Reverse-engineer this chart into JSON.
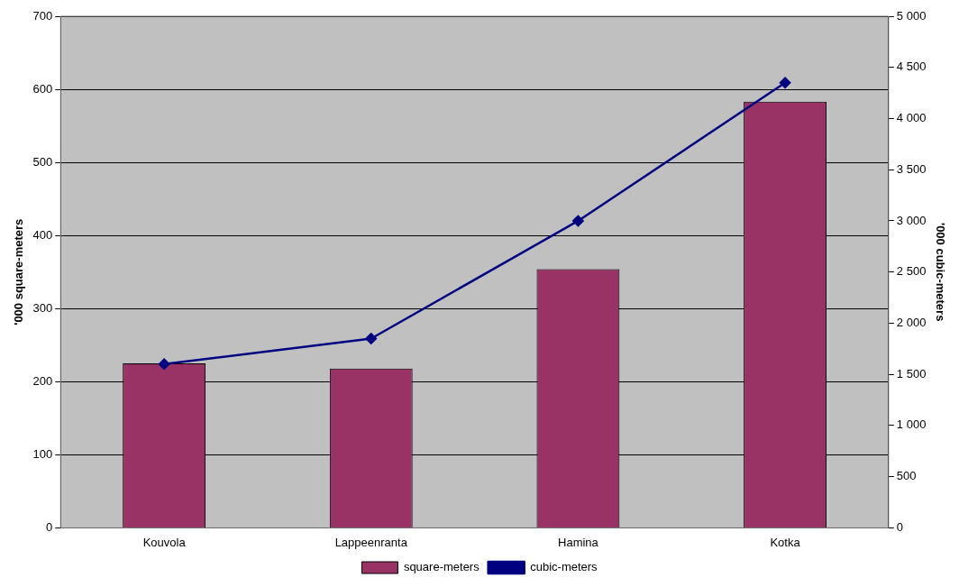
{
  "chart_data": {
    "type": "bar",
    "categories": [
      "Kouvola",
      "Lappeenranta",
      "Hamina",
      "Kotka"
    ],
    "series": [
      {
        "name": "square-meters",
        "color": "#993366",
        "values": [
          225,
          218,
          354,
          583
        ]
      },
      {
        "name": "cubic-meters",
        "type": "line",
        "axis": "y2",
        "color": "#000080",
        "marker": "diamond",
        "values": [
          1600,
          1850,
          3000,
          4350
        ]
      }
    ],
    "ylabel": "'000 square-meters",
    "y2label": "'000 cubic-meters",
    "ylim": [
      0,
      700
    ],
    "yticks": [
      0,
      100,
      200,
      300,
      400,
      500,
      600,
      700
    ],
    "y2lim": [
      0,
      5000
    ],
    "y2ticks": [
      0,
      500,
      {
        "value": 1000,
        "label": "1 000"
      },
      {
        "value": 1500,
        "label": "1 500"
      },
      {
        "value": 2000,
        "label": "2 000"
      },
      {
        "value": 2500,
        "label": "2 500"
      },
      {
        "value": 3000,
        "label": "3 000"
      },
      {
        "value": 3500,
        "label": "3 500"
      },
      {
        "value": 4000,
        "label": "4 000"
      },
      {
        "value": 4500,
        "label": "4 500"
      },
      {
        "value": 5000,
        "label": "5 000"
      }
    ],
    "grid": "y",
    "legend": "bottom"
  }
}
